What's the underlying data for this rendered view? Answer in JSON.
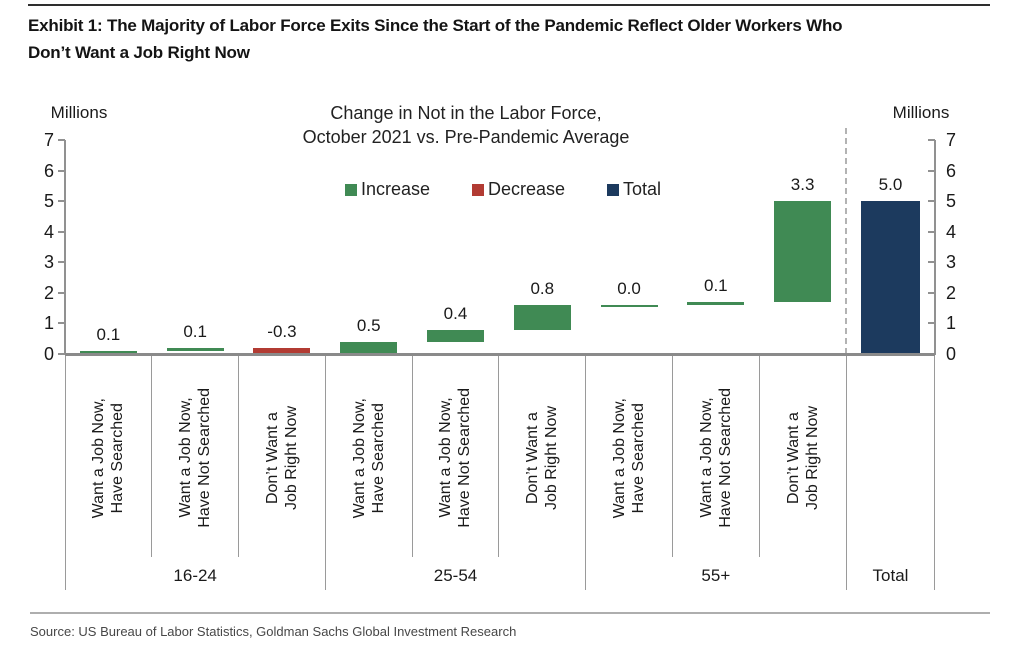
{
  "header": {
    "title": "Exhibit 1: The Majority of Labor Force Exits Since the Start of the Pandemic Reflect Older Workers Who\nDon’t Want a Job Right Now"
  },
  "footer": {
    "source": "Source: US Bureau of Labor Statistics, Goldman Sachs Global Investment Research"
  },
  "chart_data": {
    "type": "bar",
    "subtype": "waterfall",
    "title": "Change in Not in the Labor Force,\nOctober 2021 vs. Pre-Pandemic Average",
    "axis_unit_left": "Millions",
    "axis_unit_right": "Millions",
    "ylim": [
      0,
      7
    ],
    "yticks": [
      0,
      1,
      2,
      3,
      4,
      5,
      6,
      7
    ],
    "grid": "off",
    "legend_position": "top-center",
    "legend": [
      {
        "label": "Increase",
        "color": "#408a54"
      },
      {
        "label": "Decrease",
        "color": "#b23b33"
      },
      {
        "label": "Total",
        "color": "#1c3a5e"
      }
    ],
    "colors": {
      "increase": "#408a54",
      "decrease": "#b23b33",
      "total": "#1c3a5e"
    },
    "groups": [
      {
        "label": "16-24",
        "bars": [
          {
            "category": "Want a Job Now,\nHave Searched",
            "value": 0.1,
            "display": "0.1",
            "kind": "increase"
          },
          {
            "category": "Want a Job Now,\nHave Not Searched",
            "value": 0.1,
            "display": "0.1",
            "kind": "increase"
          },
          {
            "category": "Don’t Want a\nJob Right Now",
            "value": -0.3,
            "display": "-0.3",
            "kind": "decrease"
          }
        ]
      },
      {
        "label": "25-54",
        "bars": [
          {
            "category": "Want a Job Now,\nHave Searched",
            "value": 0.5,
            "display": "0.5",
            "kind": "increase"
          },
          {
            "category": "Want a Job Now,\nHave Not Searched",
            "value": 0.4,
            "display": "0.4",
            "kind": "increase"
          },
          {
            "category": "Don’t Want a\nJob Right Now",
            "value": 0.8,
            "display": "0.8",
            "kind": "increase"
          }
        ]
      },
      {
        "label": "55+",
        "bars": [
          {
            "category": "Want a Job Now,\nHave Searched",
            "value": 0.0,
            "display": "0.0",
            "kind": "increase"
          },
          {
            "category": "Want a Job Now,\nHave Not Searched",
            "value": 0.1,
            "display": "0.1",
            "kind": "increase"
          },
          {
            "category": "Don’t Want a\nJob Right Now",
            "value": 3.3,
            "display": "3.3",
            "kind": "increase"
          }
        ]
      }
    ],
    "total": {
      "label": "Total",
      "value": 5.0,
      "display": "5.0",
      "kind": "total"
    }
  }
}
